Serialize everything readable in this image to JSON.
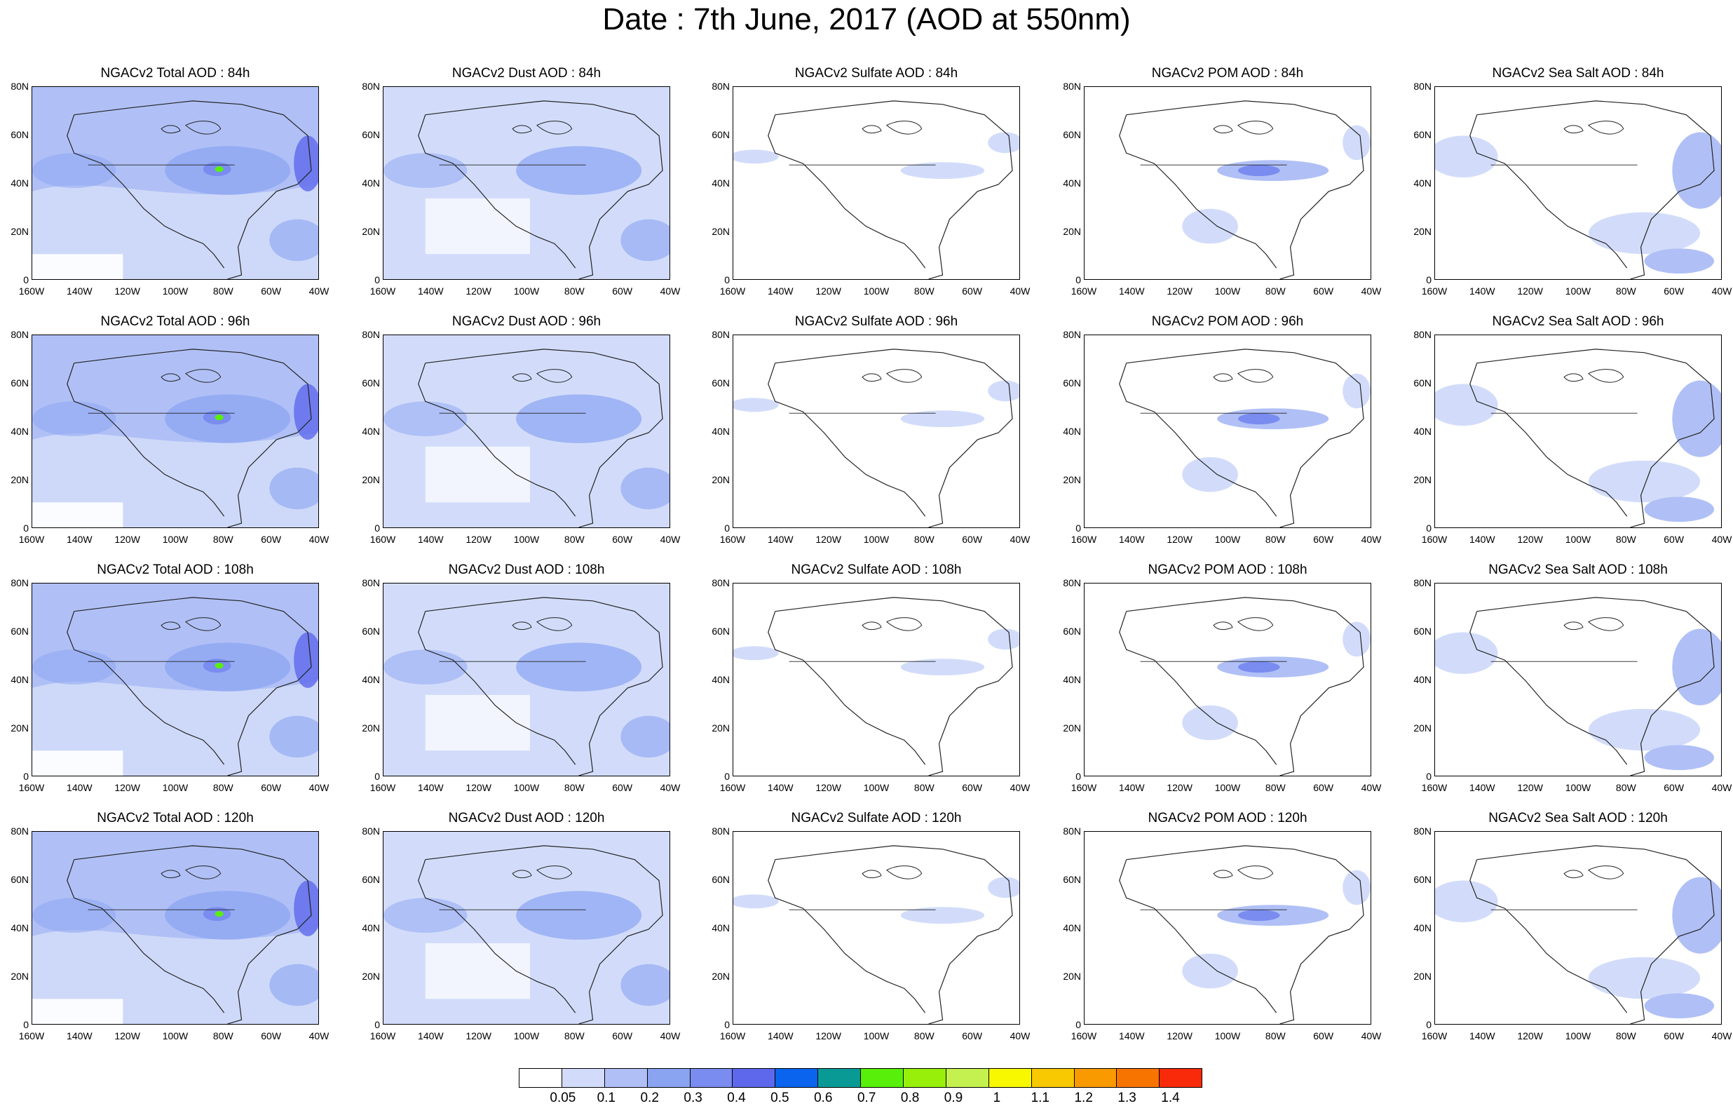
{
  "title": "Date : 7th June, 2017 (AOD at 550nm)",
  "columns": [
    "Total",
    "Dust",
    "Sulfate",
    "POM",
    "Sea Salt"
  ],
  "rows": [
    "84h",
    "96h",
    "108h",
    "120h"
  ],
  "panel_titles": [
    [
      "NGACv2 Total AOD : 84h",
      "NGACv2 Dust AOD : 84h",
      "NGACv2 Sulfate AOD : 84h",
      "NGACv2 POM AOD : 84h",
      "NGACv2 Sea Salt AOD : 84h"
    ],
    [
      "NGACv2 Total AOD : 96h",
      "NGACv2 Dust AOD : 96h",
      "NGACv2 Sulfate AOD : 96h",
      "NGACv2 POM AOD : 96h",
      "NGACv2 Sea Salt AOD : 96h"
    ],
    [
      "NGACv2 Total AOD : 108h",
      "NGACv2 Dust AOD : 108h",
      "NGACv2 Sulfate AOD : 108h",
      "NGACv2 POM AOD : 108h",
      "NGACv2 Sea Salt AOD : 108h"
    ],
    [
      "NGACv2 Total AOD : 120h",
      "NGACv2 Dust AOD : 120h",
      "NGACv2 Sulfate AOD : 120h",
      "NGACv2 POM AOD : 120h",
      "NGACv2 Sea Salt  AOD : 120h"
    ]
  ],
  "x_ticks": [
    "160W",
    "140W",
    "120W",
    "100W",
    "80W",
    "60W",
    "40W"
  ],
  "y_ticks": [
    "80N",
    "60N",
    "40N",
    "20N",
    "0"
  ],
  "colorbar": {
    "labels": [
      "0.05",
      "0.1",
      "0.2",
      "0.3",
      "0.4",
      "0.5",
      "0.6",
      "0.7",
      "0.8",
      "0.9",
      "1",
      "1.1",
      "1.2",
      "1.3",
      "1.4"
    ],
    "colors": [
      "#ffffff",
      "#d2dcfa",
      "#b0c0f6",
      "#8aa4f2",
      "#7a8cf0",
      "#5e68ec",
      "#0a64ee",
      "#0a9a96",
      "#58f00a",
      "#98f00a",
      "#c4f050",
      "#f8f800",
      "#f8c800",
      "#f89a00",
      "#f87400",
      "#f82a0a"
    ]
  },
  "panel_fill_intensity": [
    [
      0.55,
      0.35,
      0.05,
      0.12,
      0.15
    ],
    [
      0.55,
      0.35,
      0.05,
      0.12,
      0.15
    ],
    [
      0.55,
      0.35,
      0.05,
      0.12,
      0.15
    ],
    [
      0.5,
      0.35,
      0.05,
      0.12,
      0.15
    ]
  ]
}
